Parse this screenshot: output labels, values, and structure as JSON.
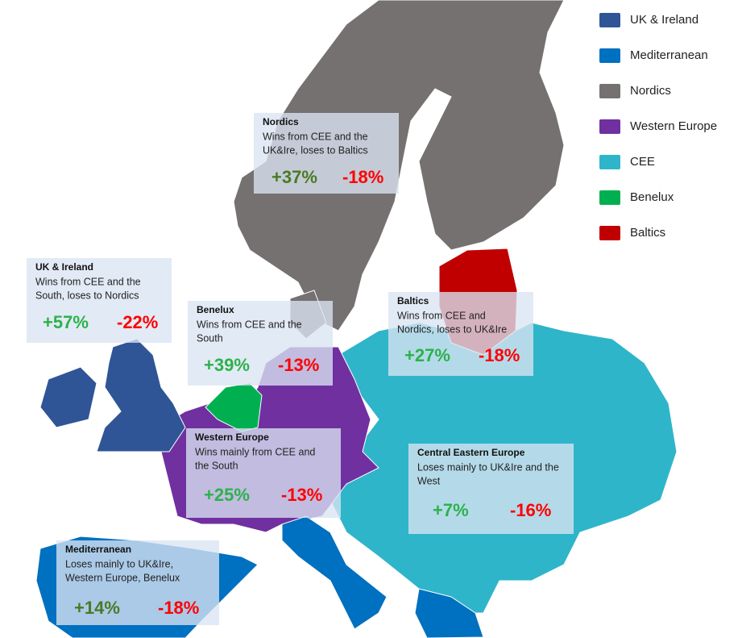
{
  "legend": [
    {
      "label": "UK & Ireland",
      "color": "#2f5597"
    },
    {
      "label": "Mediterranean",
      "color": "#0070c0"
    },
    {
      "label": "Nordics",
      "color": "#767171"
    },
    {
      "label": "Western Europe",
      "color": "#7030a0"
    },
    {
      "label": "CEE",
      "color": "#2fb5c9"
    },
    {
      "label": "Benelux",
      "color": "#00b050"
    },
    {
      "label": "Baltics",
      "color": "#c00000"
    }
  ],
  "callouts": [
    {
      "title": "Nordics",
      "lines": [
        "Wins from CEE and the",
        "UK&Ire, loses to Baltics"
      ],
      "gain": "+37%",
      "loss": "-18%"
    },
    {
      "title": "UK & Ireland",
      "lines": [
        "Wins from CEE and the",
        "South, loses to Nordics"
      ],
      "gain": "+57%",
      "loss": "-22%"
    },
    {
      "title": "Benelux",
      "lines": [
        "Wins from CEE and the",
        "South"
      ],
      "gain": "+39%",
      "loss": "-13%"
    },
    {
      "title": "Baltics",
      "lines": [
        "Wins from CEE and",
        "Nordics, loses to UK&Ire"
      ],
      "gain": "+27%",
      "loss": "-18%"
    },
    {
      "title": "Western Europe",
      "lines": [
        "Wins mainly from CEE and",
        "the South"
      ],
      "gain": "+25%",
      "loss": "-13%"
    },
    {
      "title": "Central Eastern Europe",
      "lines": [
        "Loses mainly to UK&Ire and the",
        "West"
      ],
      "gain": "+7%",
      "loss": "-16%"
    },
    {
      "title": "Mediterranean",
      "lines": [
        "Loses mainly to UK&Ire,",
        "Western Europe, Benelux"
      ],
      "gain": "+14%",
      "loss": "-18%"
    }
  ]
}
